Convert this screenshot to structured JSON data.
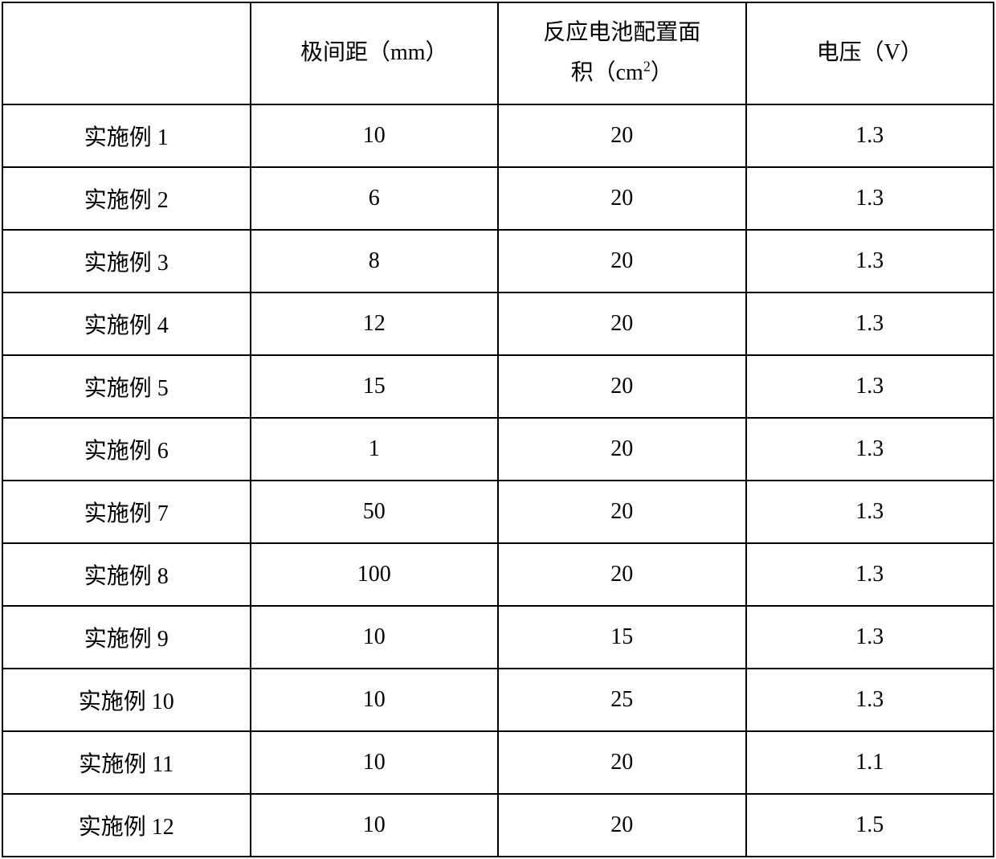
{
  "table": {
    "columns": [
      {
        "label": "",
        "width": "25%"
      },
      {
        "label": "极间距（mm）",
        "width": "25%"
      },
      {
        "label_html": "反应电池配置面<br>积（cm²）",
        "width": "25%"
      },
      {
        "label": "电压（V）",
        "width": "25%"
      }
    ],
    "header": {
      "col0": "",
      "col1": "极间距（mm）",
      "col2_line1": "反应电池配置面",
      "col2_line2_pre": "积（cm",
      "col2_line2_sup": "2",
      "col2_line2_post": "）",
      "col3": "电压（V）"
    },
    "rows": [
      {
        "label": "实施例 1",
        "gap": "10",
        "area": "20",
        "voltage": "1.3"
      },
      {
        "label": "实施例 2",
        "gap": "6",
        "area": "20",
        "voltage": "1.3"
      },
      {
        "label": "实施例 3",
        "gap": "8",
        "area": "20",
        "voltage": "1.3"
      },
      {
        "label": "实施例 4",
        "gap": "12",
        "area": "20",
        "voltage": "1.3"
      },
      {
        "label": "实施例 5",
        "gap": "15",
        "area": "20",
        "voltage": "1.3"
      },
      {
        "label": "实施例 6",
        "gap": "1",
        "area": "20",
        "voltage": "1.3"
      },
      {
        "label": "实施例 7",
        "gap": "50",
        "area": "20",
        "voltage": "1.3"
      },
      {
        "label": "实施例 8",
        "gap": "100",
        "area": "20",
        "voltage": "1.3"
      },
      {
        "label": "实施例 9",
        "gap": "10",
        "area": "15",
        "voltage": "1.3"
      },
      {
        "label": "实施例 10",
        "gap": "10",
        "area": "25",
        "voltage": "1.3"
      },
      {
        "label": "实施例 11",
        "gap": "10",
        "area": "20",
        "voltage": "1.1"
      },
      {
        "label": "实施例 12",
        "gap": "10",
        "area": "20",
        "voltage": "1.5"
      }
    ],
    "styling": {
      "border_color": "#000000",
      "border_width": 2,
      "background_color": "#ffffff",
      "text_color": "#000000",
      "font_size": 28,
      "font_family": "SimSun",
      "text_align": "center",
      "cell_padding_v": 18,
      "cell_padding_h": 4,
      "header_line_height": 1.8
    }
  }
}
